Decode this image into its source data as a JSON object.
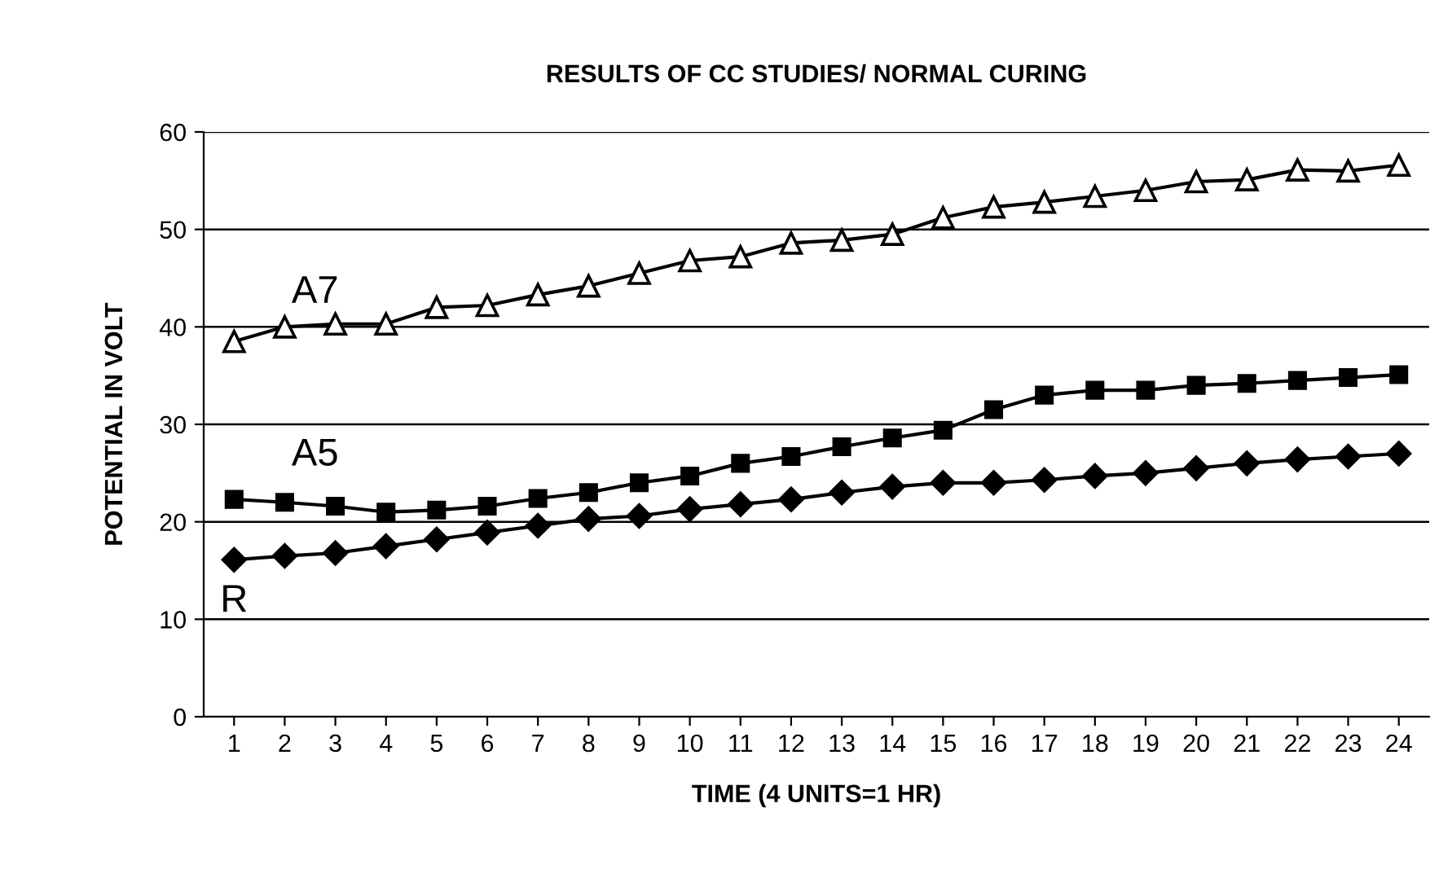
{
  "chart_data": {
    "type": "line",
    "title": "RESULTS OF CC STUDIES/ NORMAL CURING",
    "xlabel": "TIME (4 UNITS=1 HR)",
    "ylabel": "POTENTIAL IN VOLT",
    "categories": [
      "1",
      "2",
      "3",
      "4",
      "5",
      "6",
      "7",
      "8",
      "9",
      "10",
      "11",
      "12",
      "13",
      "14",
      "15",
      "16",
      "17",
      "18",
      "19",
      "20",
      "21",
      "22",
      "23",
      "24"
    ],
    "series": [
      {
        "name": "A7",
        "color": "#000000",
        "marker": "triangle",
        "values": [
          38.5,
          40,
          40.3,
          40.3,
          42,
          42.2,
          43.3,
          44.2,
          45.5,
          46.8,
          47.2,
          48.6,
          48.9,
          49.5,
          51.2,
          52.3,
          52.8,
          53.4,
          54,
          54.9,
          55.1,
          56.1,
          56,
          56.6
        ]
      },
      {
        "name": "A5",
        "color": "#000000",
        "marker": "square",
        "values": [
          22.3,
          22,
          21.6,
          21,
          21.2,
          21.6,
          22.4,
          23,
          24,
          24.7,
          26,
          26.7,
          27.7,
          28.6,
          29.4,
          31.5,
          33,
          33.5,
          33.5,
          34,
          34.2,
          34.5,
          34.8,
          35.1
        ]
      },
      {
        "name": "R",
        "color": "#000000",
        "marker": "diamond",
        "values": [
          16.1,
          16.5,
          16.8,
          17.5,
          18.2,
          18.9,
          19.6,
          20.3,
          20.6,
          21.3,
          21.8,
          22.3,
          23,
          23.6,
          24,
          24,
          24.3,
          24.7,
          25,
          25.5,
          26,
          26.4,
          26.7,
          27
        ]
      }
    ],
    "ylim": [
      0,
      60
    ],
    "yticks": [
      0,
      10,
      20,
      30,
      40,
      50,
      60
    ],
    "grid": "y",
    "legend": false,
    "line_style": "solid"
  }
}
